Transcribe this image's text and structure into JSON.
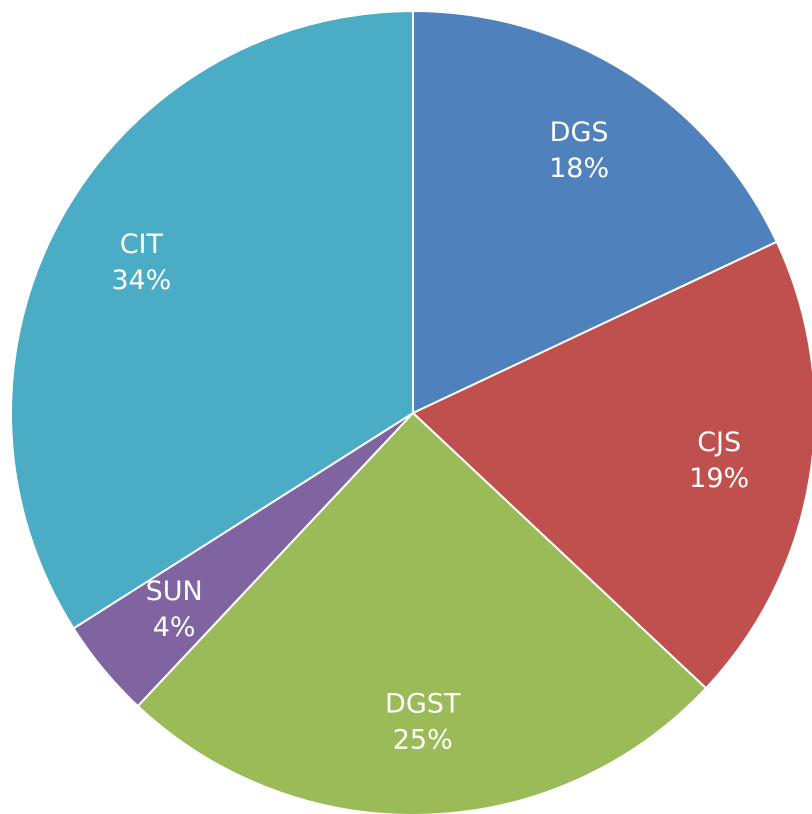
{
  "chart_data": {
    "type": "pie",
    "categories": [
      "DGS",
      "CJS",
      "DGST",
      "SUN",
      "CIT"
    ],
    "values": [
      18,
      19,
      25,
      4,
      34
    ],
    "value_labels": [
      "18%",
      "19%",
      "25%",
      "4%",
      "34%"
    ],
    "colors": [
      "#4f81bd",
      "#c0504d",
      "#9bbb59",
      "#8064a2",
      "#4bacc6"
    ]
  }
}
